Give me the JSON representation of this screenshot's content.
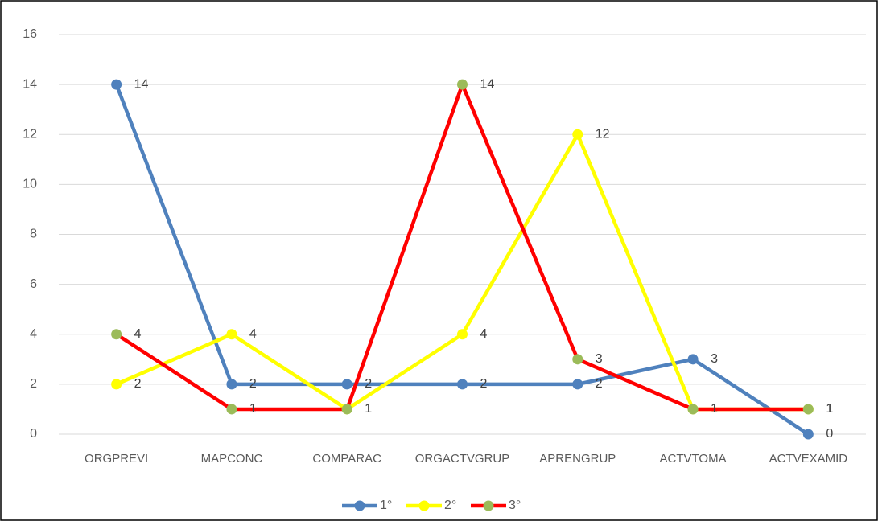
{
  "chart_data": {
    "type": "line",
    "categories": [
      "ORGPREVI",
      "MAPCONC",
      "COMPARAC",
      "ORGACTVGRUP",
      "APRENGRUP",
      "ACTVTOMA",
      "ACTVEXAMID"
    ],
    "series": [
      {
        "name": "1°",
        "color": "#4f81bd",
        "marker_color": "#4f81bd",
        "values": [
          14,
          2,
          2,
          2,
          2,
          3,
          0
        ]
      },
      {
        "name": "2°",
        "color": "#ffff00",
        "marker_color": "#ffff00",
        "values": [
          2,
          4,
          1,
          4,
          12,
          1,
          1
        ]
      },
      {
        "name": "3°",
        "color": "#ff0000",
        "marker_color": "#9bbb59",
        "values": [
          4,
          1,
          1,
          14,
          3,
          1,
          1
        ]
      }
    ],
    "ylim": [
      0,
      16
    ],
    "yticks": [
      0,
      2,
      4,
      6,
      8,
      10,
      12,
      14,
      16
    ],
    "grid": true,
    "legend": "bottom"
  }
}
